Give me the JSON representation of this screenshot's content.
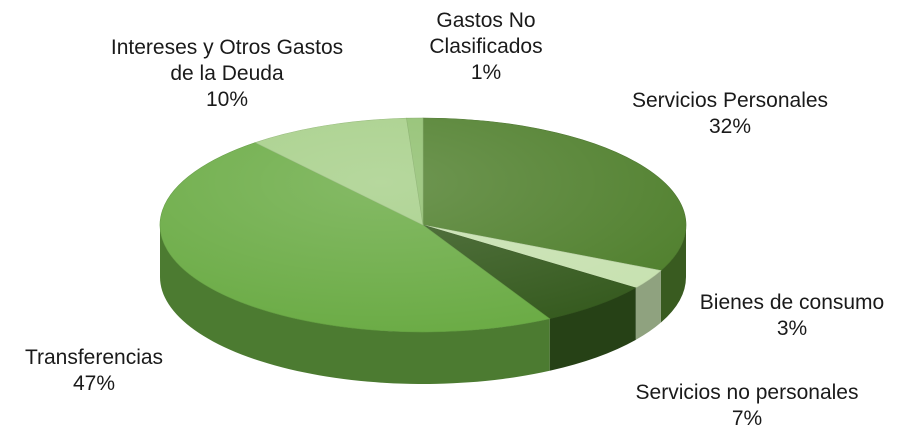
{
  "chart_data": {
    "type": "pie",
    "style": "3d",
    "start_angle_deg": -90,
    "direction": "clockwise",
    "slices": [
      {
        "label_lines": [
          "Servicios Personales"
        ],
        "value_label": "32%",
        "value": 32,
        "color": "#4f7f2c"
      },
      {
        "label_lines": [
          "Bienes de consumo"
        ],
        "value_label": "3%",
        "value": 3,
        "color": "#c7e1b0"
      },
      {
        "label_lines": [
          "Servicios no personales"
        ],
        "value_label": "7%",
        "value": 7,
        "color": "#355a1e"
      },
      {
        "label_lines": [
          "Transferencias"
        ],
        "value_label": "47%",
        "value": 47,
        "color": "#6aab44"
      },
      {
        "label_lines": [
          "Intereses y Otros Gastos",
          "de la Deuda"
        ],
        "value_label": "10%",
        "value": 10,
        "color": "#a6cf88"
      },
      {
        "label_lines": [
          "Gastos No",
          "Clasificados"
        ],
        "value_label": "1%",
        "value": 1,
        "color": "#8fbf6e"
      }
    ]
  }
}
